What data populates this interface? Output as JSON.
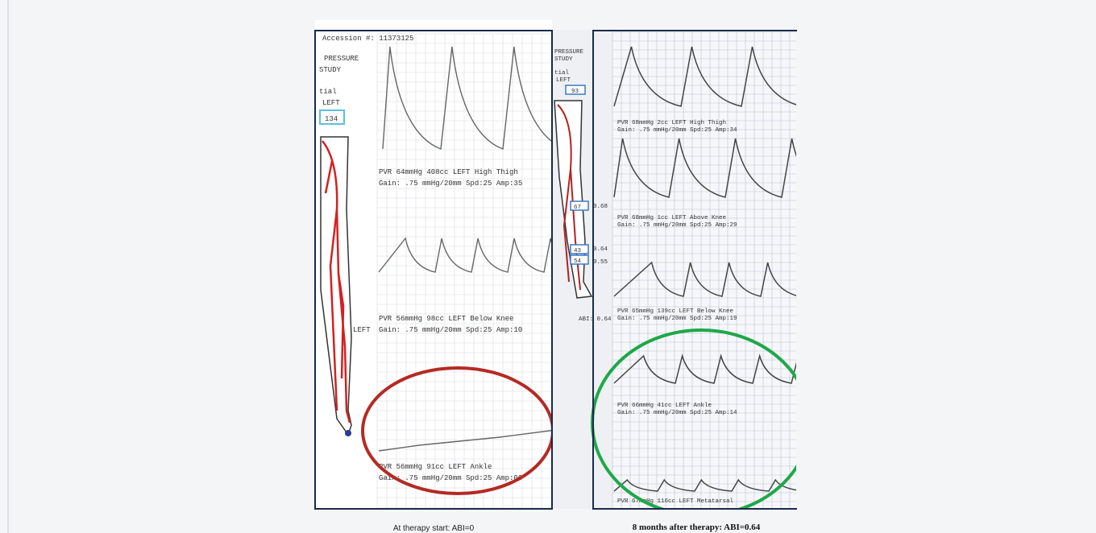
{
  "left_panel": {
    "header": {
      "accession": "Accession #: 11373125",
      "title1": "PRESSURE",
      "title2": "STUDY",
      "vessel": "tial",
      "side": "LEFT",
      "pressure_box": "134"
    },
    "readings": [
      {
        "line1": "PVR  64mmHg  408cc   LEFT High Thigh",
        "line2": "Gain: .75 mmHg/20mm  Spd:25  Amp:35"
      },
      {
        "line1": "PVR  56mmHg   98cc   LEFT Below Knee",
        "line2": "Gain: .75 mmHg/20mm  Spd:25  Amp:10"
      },
      {
        "line1": "PVR  56mmHg   91cc   LEFT Ankle",
        "line2": "Gain: .75 mmHg/20mm  Spd:25  Amp:00"
      }
    ],
    "side_label": "LEFT",
    "caption": "At therapy start: ABI=0"
  },
  "right_panel": {
    "header": {
      "title1": "PRESSURE",
      "title2": "STUDY",
      "vessel": "tial",
      "side": "LEFT"
    },
    "boxes": [
      "93",
      "67",
      "43",
      "54"
    ],
    "indices": [
      "0.68",
      "0.64",
      "0.55"
    ],
    "abi": "ABI: 0.64",
    "readings": [
      {
        "line1": "PVR  68mmHg    2cc   LEFT High Thigh",
        "line2": "Gain: .75 mmHg/20mm  Spd:25  Amp:34"
      },
      {
        "line1": "PVR  68mmHg    1cc   LEFT Above Knee",
        "line2": "Gain: .75 mmHg/20mm  Spd:25  Amp:29"
      },
      {
        "line1": "PVR  65mmHg  139cc   LEFT Below Knee",
        "line2": "Gain: .75 mmHg/20mm  Spd:25  Amp:19"
      },
      {
        "line1": "PVR  66mmHg   41cc   LEFT Ankle",
        "line2": "Gain: .75 mmHg/20mm  Spd:25  Amp:14"
      },
      {
        "line1": "PVR  67mmHg  116cc   LEFT Metatarsal"
      }
    ],
    "caption": "8 months after therapy: ABI=0.64"
  }
}
